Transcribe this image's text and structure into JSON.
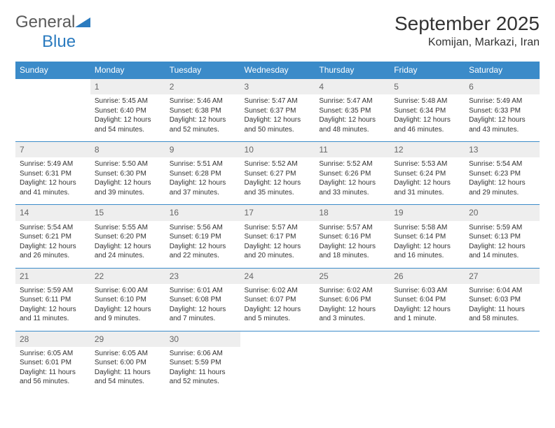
{
  "brand": {
    "part1": "General",
    "part2": "Blue"
  },
  "title": "September 2025",
  "location": "Komijan, Markazi, Iran",
  "colors": {
    "headerBg": "#3b8bc9",
    "headerText": "#ffffff",
    "dayNumBg": "#eeeeee",
    "dayNumText": "#666666",
    "ruleLine": "#3b8bc9",
    "bodyText": "#333333"
  },
  "weekdays": [
    "Sunday",
    "Monday",
    "Tuesday",
    "Wednesday",
    "Thursday",
    "Friday",
    "Saturday"
  ],
  "weeks": [
    [
      {
        "n": "",
        "sr": "",
        "ss": "",
        "dl": ""
      },
      {
        "n": "1",
        "sr": "Sunrise: 5:45 AM",
        "ss": "Sunset: 6:40 PM",
        "dl": "Daylight: 12 hours and 54 minutes."
      },
      {
        "n": "2",
        "sr": "Sunrise: 5:46 AM",
        "ss": "Sunset: 6:38 PM",
        "dl": "Daylight: 12 hours and 52 minutes."
      },
      {
        "n": "3",
        "sr": "Sunrise: 5:47 AM",
        "ss": "Sunset: 6:37 PM",
        "dl": "Daylight: 12 hours and 50 minutes."
      },
      {
        "n": "4",
        "sr": "Sunrise: 5:47 AM",
        "ss": "Sunset: 6:35 PM",
        "dl": "Daylight: 12 hours and 48 minutes."
      },
      {
        "n": "5",
        "sr": "Sunrise: 5:48 AM",
        "ss": "Sunset: 6:34 PM",
        "dl": "Daylight: 12 hours and 46 minutes."
      },
      {
        "n": "6",
        "sr": "Sunrise: 5:49 AM",
        "ss": "Sunset: 6:33 PM",
        "dl": "Daylight: 12 hours and 43 minutes."
      }
    ],
    [
      {
        "n": "7",
        "sr": "Sunrise: 5:49 AM",
        "ss": "Sunset: 6:31 PM",
        "dl": "Daylight: 12 hours and 41 minutes."
      },
      {
        "n": "8",
        "sr": "Sunrise: 5:50 AM",
        "ss": "Sunset: 6:30 PM",
        "dl": "Daylight: 12 hours and 39 minutes."
      },
      {
        "n": "9",
        "sr": "Sunrise: 5:51 AM",
        "ss": "Sunset: 6:28 PM",
        "dl": "Daylight: 12 hours and 37 minutes."
      },
      {
        "n": "10",
        "sr": "Sunrise: 5:52 AM",
        "ss": "Sunset: 6:27 PM",
        "dl": "Daylight: 12 hours and 35 minutes."
      },
      {
        "n": "11",
        "sr": "Sunrise: 5:52 AM",
        "ss": "Sunset: 6:26 PM",
        "dl": "Daylight: 12 hours and 33 minutes."
      },
      {
        "n": "12",
        "sr": "Sunrise: 5:53 AM",
        "ss": "Sunset: 6:24 PM",
        "dl": "Daylight: 12 hours and 31 minutes."
      },
      {
        "n": "13",
        "sr": "Sunrise: 5:54 AM",
        "ss": "Sunset: 6:23 PM",
        "dl": "Daylight: 12 hours and 29 minutes."
      }
    ],
    [
      {
        "n": "14",
        "sr": "Sunrise: 5:54 AM",
        "ss": "Sunset: 6:21 PM",
        "dl": "Daylight: 12 hours and 26 minutes."
      },
      {
        "n": "15",
        "sr": "Sunrise: 5:55 AM",
        "ss": "Sunset: 6:20 PM",
        "dl": "Daylight: 12 hours and 24 minutes."
      },
      {
        "n": "16",
        "sr": "Sunrise: 5:56 AM",
        "ss": "Sunset: 6:19 PM",
        "dl": "Daylight: 12 hours and 22 minutes."
      },
      {
        "n": "17",
        "sr": "Sunrise: 5:57 AM",
        "ss": "Sunset: 6:17 PM",
        "dl": "Daylight: 12 hours and 20 minutes."
      },
      {
        "n": "18",
        "sr": "Sunrise: 5:57 AM",
        "ss": "Sunset: 6:16 PM",
        "dl": "Daylight: 12 hours and 18 minutes."
      },
      {
        "n": "19",
        "sr": "Sunrise: 5:58 AM",
        "ss": "Sunset: 6:14 PM",
        "dl": "Daylight: 12 hours and 16 minutes."
      },
      {
        "n": "20",
        "sr": "Sunrise: 5:59 AM",
        "ss": "Sunset: 6:13 PM",
        "dl": "Daylight: 12 hours and 14 minutes."
      }
    ],
    [
      {
        "n": "21",
        "sr": "Sunrise: 5:59 AM",
        "ss": "Sunset: 6:11 PM",
        "dl": "Daylight: 12 hours and 11 minutes."
      },
      {
        "n": "22",
        "sr": "Sunrise: 6:00 AM",
        "ss": "Sunset: 6:10 PM",
        "dl": "Daylight: 12 hours and 9 minutes."
      },
      {
        "n": "23",
        "sr": "Sunrise: 6:01 AM",
        "ss": "Sunset: 6:08 PM",
        "dl": "Daylight: 12 hours and 7 minutes."
      },
      {
        "n": "24",
        "sr": "Sunrise: 6:02 AM",
        "ss": "Sunset: 6:07 PM",
        "dl": "Daylight: 12 hours and 5 minutes."
      },
      {
        "n": "25",
        "sr": "Sunrise: 6:02 AM",
        "ss": "Sunset: 6:06 PM",
        "dl": "Daylight: 12 hours and 3 minutes."
      },
      {
        "n": "26",
        "sr": "Sunrise: 6:03 AM",
        "ss": "Sunset: 6:04 PM",
        "dl": "Daylight: 12 hours and 1 minute."
      },
      {
        "n": "27",
        "sr": "Sunrise: 6:04 AM",
        "ss": "Sunset: 6:03 PM",
        "dl": "Daylight: 11 hours and 58 minutes."
      }
    ],
    [
      {
        "n": "28",
        "sr": "Sunrise: 6:05 AM",
        "ss": "Sunset: 6:01 PM",
        "dl": "Daylight: 11 hours and 56 minutes."
      },
      {
        "n": "29",
        "sr": "Sunrise: 6:05 AM",
        "ss": "Sunset: 6:00 PM",
        "dl": "Daylight: 11 hours and 54 minutes."
      },
      {
        "n": "30",
        "sr": "Sunrise: 6:06 AM",
        "ss": "Sunset: 5:59 PM",
        "dl": "Daylight: 11 hours and 52 minutes."
      },
      {
        "n": "",
        "sr": "",
        "ss": "",
        "dl": ""
      },
      {
        "n": "",
        "sr": "",
        "ss": "",
        "dl": ""
      },
      {
        "n": "",
        "sr": "",
        "ss": "",
        "dl": ""
      },
      {
        "n": "",
        "sr": "",
        "ss": "",
        "dl": ""
      }
    ]
  ]
}
